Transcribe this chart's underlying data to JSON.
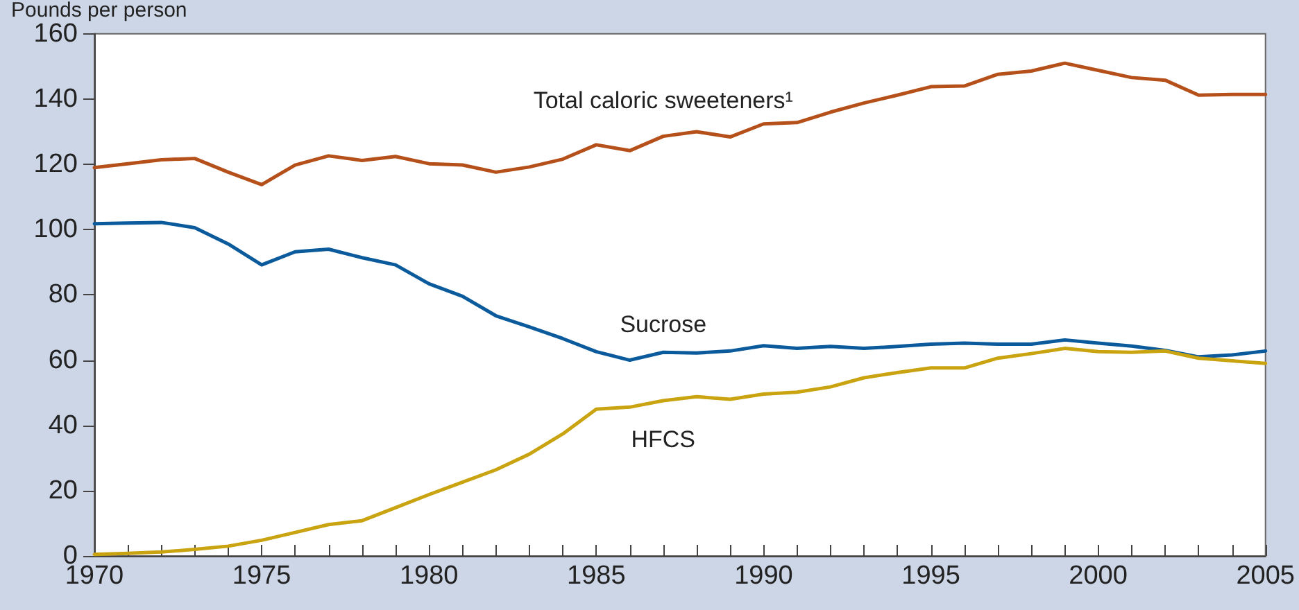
{
  "chart_data": {
    "type": "line",
    "ylabel": "Pounds per person",
    "x": [
      1970,
      1971,
      1972,
      1973,
      1974,
      1975,
      1976,
      1977,
      1978,
      1979,
      1980,
      1981,
      1982,
      1983,
      1984,
      1985,
      1986,
      1987,
      1988,
      1989,
      1990,
      1991,
      1992,
      1993,
      1994,
      1995,
      1996,
      1997,
      1998,
      1999,
      2000,
      2001,
      2002,
      2003,
      2004,
      2005
    ],
    "series": [
      {
        "name": "Total caloric sweeteners¹",
        "color": "#b5501a",
        "values": [
          119,
          120.2,
          121.4,
          121.8,
          117.6,
          113.8,
          119.8,
          122.6,
          121.2,
          122.4,
          120.2,
          119.8,
          117.6,
          119.2,
          121.6,
          126,
          124.2,
          128.6,
          130,
          128.4,
          132.4,
          132.8,
          136,
          138.8,
          141.2,
          143.8,
          144,
          147.6,
          148.6,
          151,
          148.8,
          146.6,
          145.8,
          141.2,
          141.4,
          141.4
        ]
      },
      {
        "name": "Sucrose",
        "color": "#0a5a9c",
        "values": [
          101.8,
          102,
          102.2,
          100.6,
          95.6,
          89.2,
          93.2,
          94,
          91.4,
          89.2,
          83.4,
          79.6,
          73.6,
          70.2,
          66.6,
          62.6,
          60,
          62.4,
          62.2,
          62.8,
          64.4,
          63.6,
          64.2,
          63.6,
          64.2,
          64.9,
          65.2,
          64.9,
          64.9,
          66.2,
          65.2,
          64.3,
          63,
          61,
          61.6,
          62.8
        ]
      },
      {
        "name": "HFCS",
        "color": "#c9a410",
        "values": [
          0.5,
          0.8,
          1.2,
          2,
          3,
          4.8,
          7.2,
          9.6,
          10.8,
          14.8,
          18.8,
          22.6,
          26.4,
          31.2,
          37.4,
          45,
          45.6,
          47.6,
          48.8,
          48,
          49.6,
          50.2,
          51.8,
          54.6,
          56.2,
          57.6,
          57.6,
          60.6,
          62,
          63.6,
          62.6,
          62.4,
          62.8,
          60.6,
          59.8,
          59
        ]
      }
    ],
    "xlim": [
      1970,
      2005
    ],
    "xticks": [
      1970,
      {
        "value": 1971,
        "label": null
      },
      {
        "value": 1972,
        "label": null
      },
      {
        "value": 1973,
        "label": null
      },
      {
        "value": 1974,
        "label": null
      },
      1975,
      {
        "value": 1976,
        "label": null
      },
      {
        "value": 1977,
        "label": null
      },
      {
        "value": 1978,
        "label": null
      },
      {
        "value": 1979,
        "label": null
      },
      1980,
      {
        "value": 1981,
        "label": null
      },
      {
        "value": 1982,
        "label": null
      },
      {
        "value": 1983,
        "label": null
      },
      {
        "value": 1984,
        "label": null
      },
      1985,
      {
        "value": 1986,
        "label": null
      },
      {
        "value": 1987,
        "label": null
      },
      {
        "value": 1988,
        "label": null
      },
      {
        "value": 1989,
        "label": null
      },
      1990,
      {
        "value": 1991,
        "label": null
      },
      {
        "value": 1992,
        "label": null
      },
      {
        "value": 1993,
        "label": null
      },
      {
        "value": 1994,
        "label": null
      },
      1995,
      {
        "value": 1996,
        "label": null
      },
      {
        "value": 1997,
        "label": null
      },
      {
        "value": 1998,
        "label": null
      },
      {
        "value": 1999,
        "label": null
      },
      2000,
      {
        "value": 2001,
        "label": null
      },
      {
        "value": 2002,
        "label": null
      },
      {
        "value": 2003,
        "label": null
      },
      {
        "value": 2004,
        "label": null
      },
      2005
    ],
    "ylim": [
      0,
      160
    ],
    "yticks": [
      0,
      20,
      40,
      60,
      80,
      100,
      120,
      140,
      160
    ],
    "grid": false,
    "legend": false,
    "marker": "none",
    "line_style": "solid"
  }
}
